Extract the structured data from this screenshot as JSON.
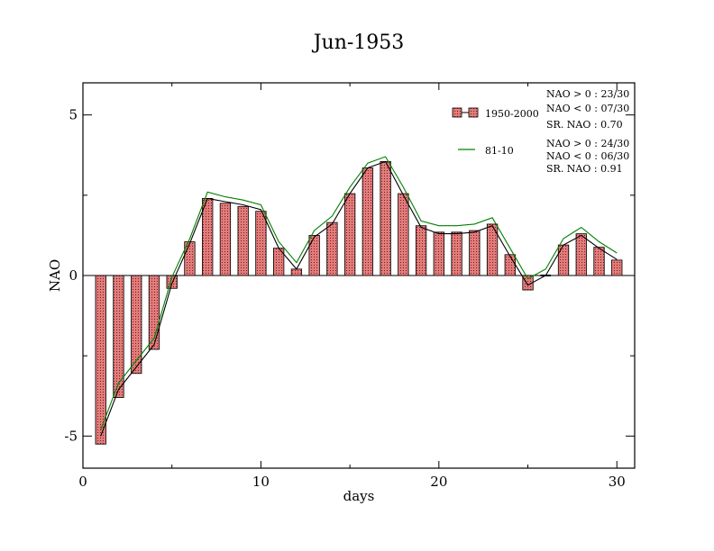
{
  "chart_data": {
    "type": "bar",
    "title": "Jun-1953",
    "xlabel": "days",
    "ylabel": "NAO",
    "xlim": [
      0,
      31
    ],
    "ylim": [
      -6,
      6
    ],
    "x_ticks": [
      0,
      10,
      20,
      30
    ],
    "x_tick_labels": [
      "0",
      "10",
      "20",
      "30"
    ],
    "y_ticks": [
      -5,
      0,
      5
    ],
    "y_tick_labels": [
      "-5",
      "0",
      "5"
    ],
    "grid": false,
    "legend_placement": "top-right",
    "x": [
      1,
      2,
      3,
      4,
      5,
      6,
      7,
      8,
      9,
      10,
      11,
      12,
      13,
      14,
      15,
      16,
      17,
      18,
      19,
      20,
      21,
      22,
      23,
      24,
      25,
      26,
      27,
      28,
      29,
      30
    ],
    "series": [
      {
        "name": "1950-2000",
        "kind": "bar",
        "color": "#e07070",
        "values": [
          -5.25,
          -3.8,
          -3.05,
          -2.3,
          -0.4,
          1.05,
          2.4,
          2.25,
          2.15,
          2.0,
          0.85,
          0.2,
          1.25,
          1.65,
          2.55,
          3.35,
          3.55,
          2.55,
          1.55,
          1.35,
          1.35,
          1.4,
          1.6,
          0.65,
          -0.45,
          -0.02,
          0.95,
          1.3,
          0.88,
          0.48
        ]
      },
      {
        "name": "",
        "kind": "line",
        "color": "#000000",
        "values": [
          -5.0,
          -3.55,
          -2.85,
          -2.15,
          -0.25,
          1.0,
          2.4,
          2.3,
          2.2,
          2.05,
          0.85,
          0.2,
          1.2,
          1.6,
          2.55,
          3.35,
          3.55,
          2.5,
          1.5,
          1.3,
          1.3,
          1.35,
          1.55,
          0.6,
          -0.3,
          0.0,
          0.95,
          1.25,
          0.85,
          0.5
        ]
      },
      {
        "name": "81-10",
        "kind": "line",
        "color": "#008000",
        "values": [
          -4.8,
          -3.35,
          -2.65,
          -1.95,
          -0.05,
          1.15,
          2.6,
          2.45,
          2.35,
          2.2,
          1.05,
          0.4,
          1.4,
          1.85,
          2.75,
          3.5,
          3.7,
          2.75,
          1.7,
          1.55,
          1.55,
          1.6,
          1.8,
          0.85,
          -0.1,
          0.2,
          1.15,
          1.5,
          1.05,
          0.7
        ]
      }
    ],
    "annotations": {
      "set1": [
        "NAO > 0 : 23/30",
        "NAO < 0 : 07/30",
        "SR. NAO :  0.70"
      ],
      "set2": [
        "NAO > 0 : 24/30",
        "NAO < 0 : 06/30",
        "SR. NAO :  0.91"
      ]
    }
  }
}
